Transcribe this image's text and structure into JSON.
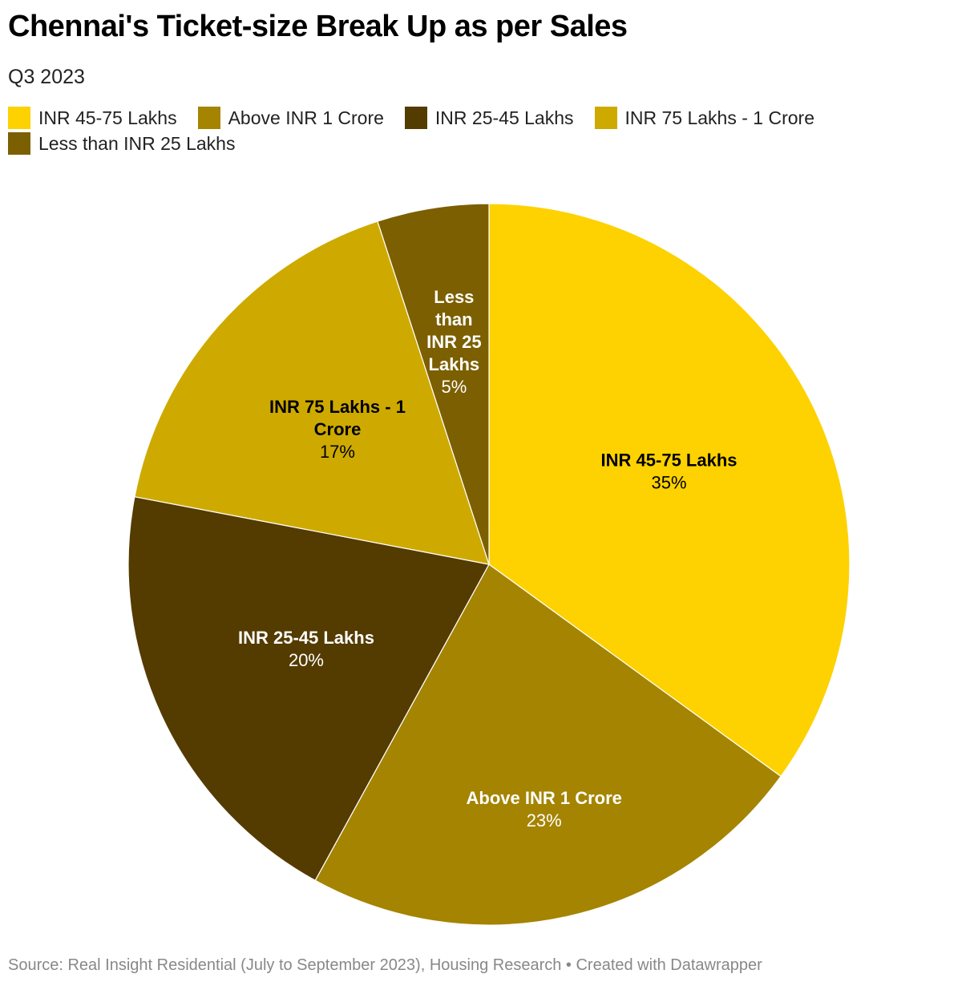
{
  "title": "Chennai's Ticket-size Break Up as per Sales",
  "subtitle": "Q3 2023",
  "source": "Source: Real Insight Residential (July to September 2023), Housing Research • Created with Datawrapper",
  "chart_data": {
    "type": "pie",
    "title": "Chennai's Ticket-size Break Up as per Sales",
    "subtitle": "Q3 2023",
    "legend_position": "top",
    "categories": [
      "INR 45-75 Lakhs",
      "Above INR 1 Crore",
      "INR 25-45 Lakhs",
      "INR 75 Lakhs - 1 Crore",
      "Less than INR 25 Lakhs"
    ],
    "values": [
      35,
      23,
      20,
      17,
      5
    ],
    "value_labels": [
      "35%",
      "23%",
      "20%",
      "17%",
      "5%"
    ],
    "label_lines": [
      [
        "INR 45-75 Lakhs"
      ],
      [
        "Above INR 1 Crore"
      ],
      [
        "INR 25-45 Lakhs"
      ],
      [
        "INR 75 Lakhs - 1",
        "Crore"
      ],
      [
        "Less",
        "than",
        "INR 25",
        "Lakhs"
      ]
    ],
    "colors": [
      "#fdd200",
      "#a48400",
      "#543b00",
      "#ceaa00",
      "#7c5f00"
    ],
    "label_colors": [
      "#000000",
      "#ffffff",
      "#ffffff",
      "#000000",
      "#ffffff"
    ]
  }
}
